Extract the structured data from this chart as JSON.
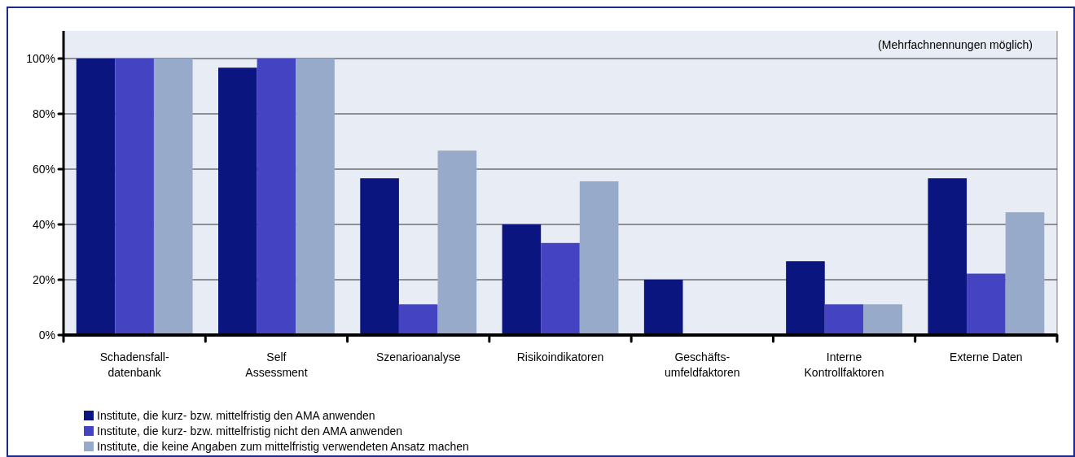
{
  "chart_data": {
    "type": "bar",
    "categories": [
      "Schadensfall-\ndatenbank",
      "Self\nAssessment",
      "Szenarioanalyse",
      "Risikoindikatoren",
      "Geschäfts-\numfeldfaktoren",
      "Interne\nKontrollfaktoren",
      "Externe Daten"
    ],
    "series": [
      {
        "name": "Institute, die kurz- bzw. mittelfristig den AMA anwenden",
        "color": "#0b1580",
        "values": [
          100,
          96.7,
          56.7,
          40,
          20,
          26.7,
          56.7
        ]
      },
      {
        "name": "Institute, die kurz- bzw. mittelfristig nicht den AMA anwenden",
        "color": "#4444c2",
        "values": [
          100,
          100,
          11.1,
          33.3,
          0,
          11.1,
          22.2
        ]
      },
      {
        "name": "Institute, die keine Angaben zum mittelfristig verwendeten Ansatz machen",
        "color": "#97aac9",
        "values": [
          100,
          100,
          66.7,
          55.6,
          0,
          11.1,
          44.4
        ]
      }
    ],
    "ylim": [
      0,
      110
    ],
    "yticks": [
      {
        "value": 0,
        "label": "0%"
      },
      {
        "value": 20,
        "label": "20%"
      },
      {
        "value": 40,
        "label": "40%"
      },
      {
        "value": 60,
        "label": "60%"
      },
      {
        "value": 80,
        "label": "80%"
      },
      {
        "value": 100,
        "label": "100%"
      }
    ],
    "grid": "y",
    "legend": "bottom left",
    "annotations": [
      "(Mehrfachnennungen möglich)"
    ]
  }
}
